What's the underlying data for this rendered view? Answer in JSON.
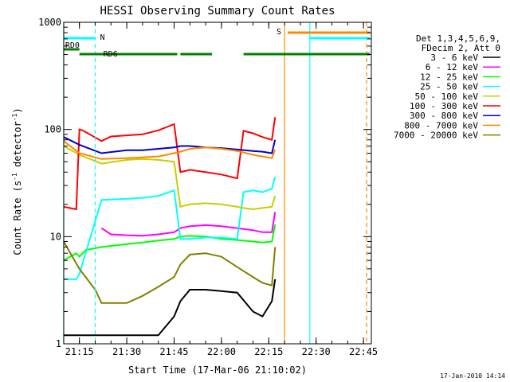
{
  "chart_data": {
    "type": "line",
    "title": "HESSI Observing Summary Count Rates",
    "xlabel": "Start Time (17-Mar-06 21:10:02)",
    "ylabel": "Count Rate (s⁻¹ detector⁻¹)",
    "ylabel_parts": [
      "Count Rate (s",
      "-1",
      " detector",
      "-1",
      ")"
    ],
    "y_scale": "log",
    "ylim": [
      1,
      1000
    ],
    "xlim": [
      "21:10:02",
      "22:47:30"
    ],
    "x_ticks": [
      "21:15",
      "21:30",
      "21:45",
      "22:00",
      "22:15",
      "22:30",
      "22:45"
    ],
    "y_ticks": [
      "1",
      "10",
      "100",
      "1000"
    ],
    "grid": false,
    "legend_placement": "right",
    "legend_header": [
      "Det 1,3,4,5,6,9,",
      "FDecim 2, Att 0"
    ],
    "series": [
      {
        "name": "3 - 6 keV",
        "color": "#000000",
        "x": [
          "21:10",
          "21:15",
          "21:22",
          "21:30",
          "21:35",
          "21:40",
          "21:45",
          "21:47",
          "21:50",
          "21:55",
          "22:00",
          "22:05",
          "22:10",
          "22:13",
          "22:16",
          "22:17"
        ],
        "values": [
          1.2,
          1.2,
          1.2,
          1.2,
          1.2,
          1.2,
          1.8,
          2.5,
          3.2,
          3.2,
          3.1,
          3.0,
          2.0,
          1.8,
          2.5,
          4.0
        ]
      },
      {
        "name": "6 - 12 keV",
        "color": "#ff00ff",
        "x": [
          "21:22",
          "21:25",
          "21:30",
          "21:35",
          "21:40",
          "21:45",
          "21:47",
          "21:50",
          "21:55",
          "22:00",
          "22:05",
          "22:10",
          "22:13",
          "22:16",
          "22:17"
        ],
        "values": [
          12.0,
          10.5,
          10.3,
          10.2,
          10.5,
          11.0,
          12.0,
          12.5,
          12.8,
          12.5,
          12.0,
          11.5,
          11.0,
          11.0,
          17.0
        ]
      },
      {
        "name": "12 - 25 keV",
        "color": "#00ff00",
        "x": [
          "21:10",
          "21:14",
          "21:15",
          "21:17",
          "21:22",
          "21:30",
          "21:35",
          "21:40",
          "21:45",
          "21:47",
          "21:50",
          "21:55",
          "22:00",
          "22:05",
          "22:10",
          "22:13",
          "22:16",
          "22:17"
        ],
        "values": [
          6.0,
          7.0,
          6.5,
          7.5,
          8.0,
          8.5,
          8.8,
          9.2,
          9.5,
          10.0,
          10.2,
          10.0,
          9.5,
          9.3,
          9.0,
          8.8,
          9.0,
          13.0
        ]
      },
      {
        "name": "25 - 50 keV",
        "color": "#00ffff",
        "x": [
          "21:10",
          "21:14",
          "21:15",
          "21:22",
          "21:30",
          "21:35",
          "21:40",
          "21:45",
          "21:47",
          "21:50",
          "21:55",
          "22:00",
          "22:05",
          "22:07",
          "22:10",
          "22:13",
          "22:16",
          "22:17"
        ],
        "values": [
          4.0,
          4.0,
          4.5,
          22.0,
          22.5,
          23.0,
          24.0,
          27.0,
          9.5,
          9.5,
          9.8,
          9.8,
          9.5,
          26.0,
          27.0,
          26.0,
          28.0,
          36.0
        ]
      },
      {
        "name": "50 - 100 keV",
        "color": "#cccc00",
        "x": [
          "21:10",
          "21:15",
          "21:22",
          "21:30",
          "21:35",
          "21:40",
          "21:45",
          "21:47",
          "21:50",
          "21:55",
          "22:00",
          "22:05",
          "22:07",
          "22:10",
          "22:13",
          "22:16",
          "22:17"
        ],
        "values": [
          70.0,
          58.0,
          48.0,
          52.0,
          53.0,
          52.0,
          50.0,
          19.0,
          20.0,
          20.5,
          20.0,
          19.0,
          18.5,
          18.0,
          18.5,
          19.0,
          24.0
        ]
      },
      {
        "name": "100 - 300 keV",
        "color": "#ff0000",
        "x": [
          "21:10",
          "21:14",
          "21:15",
          "21:16",
          "21:22",
          "21:25",
          "21:30",
          "21:35",
          "21:40",
          "21:45",
          "21:47",
          "21:50",
          "21:55",
          "22:00",
          "22:05",
          "22:07",
          "22:10",
          "22:13",
          "22:16",
          "22:17"
        ],
        "values": [
          19.0,
          18.0,
          100.0,
          98.0,
          78.0,
          86.0,
          88.0,
          90.0,
          98.0,
          112.0,
          40.0,
          42.0,
          40.0,
          38.0,
          35.0,
          97.0,
          92.0,
          85.0,
          80.0,
          130.0
        ]
      },
      {
        "name": "300 - 800 keV",
        "color": "#0000cc",
        "x": [
          "21:10",
          "21:15",
          "21:22",
          "21:30",
          "21:35",
          "21:40",
          "21:45",
          "21:47",
          "21:50",
          "21:55",
          "22:00",
          "22:05",
          "22:10",
          "22:13",
          "22:16",
          "22:17"
        ],
        "values": [
          85.0,
          72.0,
          60.0,
          64.0,
          64.0,
          66.0,
          68.0,
          70.0,
          70.0,
          68.0,
          67.0,
          65.0,
          63.0,
          62.0,
          60.0,
          80.0
        ]
      },
      {
        "name": "800 - 7000 keV",
        "color": "#ff8800",
        "x": [
          "21:10",
          "21:15",
          "21:22",
          "21:30",
          "21:35",
          "21:40",
          "21:45",
          "21:47",
          "21:50",
          "21:55",
          "22:00",
          "22:05",
          "22:10",
          "22:13",
          "22:16",
          "22:17"
        ],
        "values": [
          78.0,
          60.0,
          53.0,
          54.0,
          55.0,
          56.0,
          60.0,
          62.0,
          66.0,
          68.0,
          66.0,
          63.0,
          58.0,
          56.0,
          54.0,
          65.0
        ]
      },
      {
        "name": "7000 - 20000 keV",
        "color": "#808000",
        "x": [
          "21:10",
          "21:15",
          "21:20",
          "21:22",
          "21:30",
          "21:35",
          "21:40",
          "21:45",
          "21:47",
          "21:50",
          "21:55",
          "22:00",
          "22:05",
          "22:10",
          "22:13",
          "22:16",
          "22:17"
        ],
        "values": [
          9.0,
          5.0,
          3.2,
          2.4,
          2.4,
          2.8,
          3.4,
          4.2,
          5.5,
          6.8,
          7.0,
          6.5,
          5.2,
          4.2,
          3.7,
          3.5,
          8.0
        ]
      }
    ],
    "status_bars": [
      {
        "label": "RD0",
        "color": "#008000",
        "segments": [
          [
            "21:10",
            "21:15"
          ]
        ]
      },
      {
        "label": "RD6",
        "color": "#008000",
        "segments": [
          [
            "21:15",
            "21:46"
          ],
          [
            "21:47",
            "21:57"
          ],
          [
            "22:07",
            "22:47"
          ]
        ]
      },
      {
        "label": "N",
        "color": "#00ffff",
        "segments": [
          [
            "21:10",
            "21:20"
          ]
        ]
      },
      {
        "label": "S",
        "color": "#ff8800",
        "segments": [
          [
            "22:21",
            "22:47"
          ]
        ]
      },
      {
        "label": "",
        "color": "#00ffff",
        "segments": [
          [
            "22:28",
            "22:47"
          ]
        ]
      }
    ],
    "markers": [
      {
        "x": "21:10",
        "color": "#00ffff",
        "style": "solid"
      },
      {
        "x": "21:20",
        "color": "#00ffff",
        "style": "dashed"
      },
      {
        "x": "22:20",
        "color": "#ff8800",
        "style": "solid"
      },
      {
        "x": "22:28",
        "color": "#00ffff",
        "style": "solid"
      },
      {
        "x": "22:46",
        "color": "#ff8800",
        "style": "dashed"
      }
    ]
  },
  "footer": {
    "timestamp": "17-Jan-2010 14:14"
  }
}
